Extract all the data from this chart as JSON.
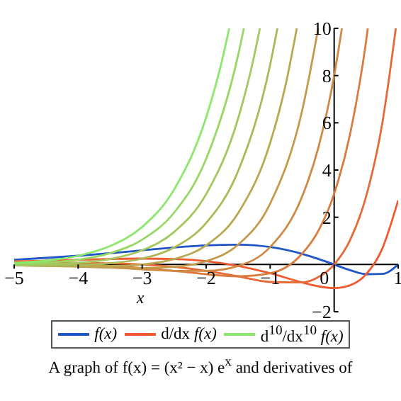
{
  "chart_data": {
    "type": "line",
    "xlabel": "x",
    "xlim": [
      -5,
      1
    ],
    "xticks": [
      -5,
      -4,
      -3,
      -2,
      -1,
      0,
      1
    ],
    "ylim": [
      -2,
      10
    ],
    "yticks": [
      -2,
      2,
      4,
      6,
      8,
      10
    ],
    "legend": "bottom",
    "marker": "none",
    "line_style": "solid",
    "annotations": [
      "A graph of f(x) = (x² − x) e$^{x}$ and derivatives of"
    ],
    "series": [
      {
        "name": "f(x)",
        "color": "#1f55c6",
        "x": [
          -5,
          -4.5,
          -4,
          -3.5,
          -3,
          -2.5,
          -2,
          -1.5,
          -1,
          -0.5,
          -0.25,
          0,
          0.25,
          0.5,
          0.75,
          1
        ],
        "values": [
          0.2,
          0.28,
          0.37,
          0.48,
          0.6,
          0.72,
          0.81,
          0.84,
          0.74,
          0.45,
          0.24,
          0,
          -0.24,
          -0.41,
          -0.4,
          0
        ]
      },
      {
        "name": "d/dx f(x)",
        "color": "#f05a30",
        "x": [
          -5,
          -4.5,
          -4,
          -3.5,
          -3,
          -2.5,
          -2,
          -1.5,
          -1,
          -0.5,
          -0.25,
          0,
          0.25,
          0.5,
          0.75,
          1
        ],
        "values": [
          0.13,
          0.16,
          0.2,
          0.23,
          0.25,
          0.23,
          0.14,
          -0.06,
          -0.37,
          -0.76,
          -0.92,
          -1,
          -0.88,
          -0.41,
          0.66,
          2.72
        ]
      },
      {
        "color": "#e56a37",
        "x": [
          -5,
          -4.5,
          -4,
          -3.5,
          -3,
          -2.5,
          -2,
          -1.5,
          -1,
          -0.5,
          -0.25,
          0,
          0.25,
          0.5,
          0.75,
          0.963
        ],
        "values": [
          0.07,
          0.08,
          0.07,
          0.05,
          0,
          -0.1,
          -0.27,
          -0.5,
          -0.74,
          -0.76,
          -0.54,
          0,
          1.04,
          2.89,
          5.95,
          10
        ]
      },
      {
        "color": "#da7a3d",
        "x": [
          -5,
          -4.5,
          -4,
          -3.5,
          -3,
          -2.5,
          -2,
          -1.5,
          -1,
          -0.5,
          -0.25,
          0,
          0.25,
          0.5,
          0.526
        ],
        "values": [
          0.02,
          0.01,
          -0.02,
          -0.07,
          -0.15,
          -0.27,
          -0.41,
          -0.5,
          -0.37,
          0.46,
          1.41,
          3,
          5.54,
          9.48,
          10
        ]
      },
      {
        "color": "#cf8944",
        "x": [
          -5,
          -4.5,
          -4,
          -3.5,
          -3,
          -2.5,
          -2,
          -1.5,
          -1,
          -0.5,
          -0.25,
          0,
          0.121
        ],
        "values": [
          -0.01,
          -0.04,
          -0.07,
          -0.13,
          -0.2,
          -0.27,
          -0.27,
          -0.06,
          0.74,
          2.88,
          4.92,
          8,
          10
        ]
      },
      {
        "color": "#c4994b",
        "x": [
          -5,
          -4.5,
          -4,
          -3.5,
          -3,
          -2.5,
          -2,
          -1.5,
          -1,
          -0.5,
          -0.249
        ],
        "values": [
          -0.03,
          -0.06,
          -0.09,
          -0.13,
          -0.15,
          -0.1,
          0.14,
          0.84,
          2.58,
          6.52,
          10
        ]
      },
      {
        "color": "#b8a951",
        "x": [
          -5,
          -4.5,
          -4,
          -3.5,
          -3,
          -2.5,
          -2,
          -1.5,
          -1,
          -0.75,
          -0.584
        ],
        "values": [
          -0.04,
          -0.06,
          -0.07,
          -0.07,
          0,
          0.23,
          0.81,
          2.18,
          5.15,
          7.71,
          10
        ]
      },
      {
        "color": "#adb958",
        "x": [
          -5,
          -4.5,
          -4,
          -3.5,
          -3,
          -2.5,
          -2,
          -1.5,
          -1,
          -0.887
        ],
        "values": [
          -0.03,
          -0.04,
          -0.02,
          0.05,
          0.25,
          0.72,
          1.76,
          3.96,
          8.46,
          10
        ]
      },
      {
        "color": "#a2c85f",
        "x": [
          -5,
          -4.5,
          -4,
          -3.5,
          -3,
          -2.5,
          -2,
          -1.5,
          -1.25,
          -1.161
        ],
        "values": [
          -0.01,
          0.01,
          0.07,
          0.23,
          0.6,
          1.38,
          2.98,
          6.19,
          8.83,
          10
        ]
      },
      {
        "color": "#97d865",
        "x": [
          -5,
          -4.5,
          -4,
          -3.5,
          -3,
          -2.5,
          -2,
          -1.5,
          -1.411
        ],
        "values": [
          0.02,
          0.08,
          0.2,
          0.48,
          1.05,
          2.2,
          4.47,
          8.87,
          10
        ]
      },
      {
        "name": "d$^{10}$/dx$^{10}$ f(x)",
        "color": "#8ce86c",
        "x": [
          -5,
          -4.5,
          -4,
          -3.5,
          -3,
          -2.5,
          -2,
          -1.75,
          -1.64
        ],
        "values": [
          0.07,
          0.16,
          0.37,
          0.78,
          1.59,
          3.18,
          6.23,
          8.66,
          10
        ]
      }
    ]
  }
}
